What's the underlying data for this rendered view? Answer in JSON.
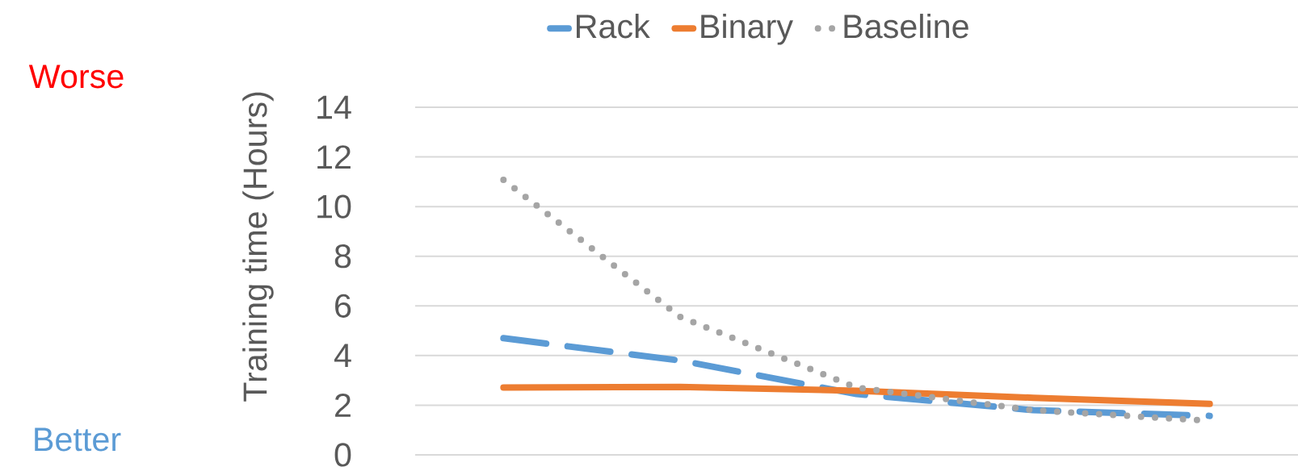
{
  "chart_data": {
    "type": "line",
    "ylabel": "Training time (Hours)",
    "categories": [
      null,
      null,
      null,
      null,
      null
    ],
    "series": [
      {
        "name": "Rack",
        "color": "#5b9bd5",
        "line_style": "dashed",
        "values": [
          4.7,
          3.8,
          2.45,
          1.8,
          1.57
        ]
      },
      {
        "name": "Binary",
        "color": "#ed7d31",
        "line_style": "solid",
        "values": [
          2.71,
          2.74,
          2.58,
          2.3,
          2.05
        ]
      },
      {
        "name": "Baseline",
        "color": "#a5a5a5",
        "line_style": "dotted",
        "values": [
          11.08,
          5.56,
          2.71,
          1.8,
          1.37
        ]
      }
    ],
    "ylim": [
      0,
      14
    ],
    "yticks": [
      0,
      2,
      4,
      6,
      8,
      10,
      12,
      14
    ],
    "grid": "y",
    "legend": "top",
    "marker": "none",
    "annotations": [
      "Worse",
      "Better"
    ]
  }
}
